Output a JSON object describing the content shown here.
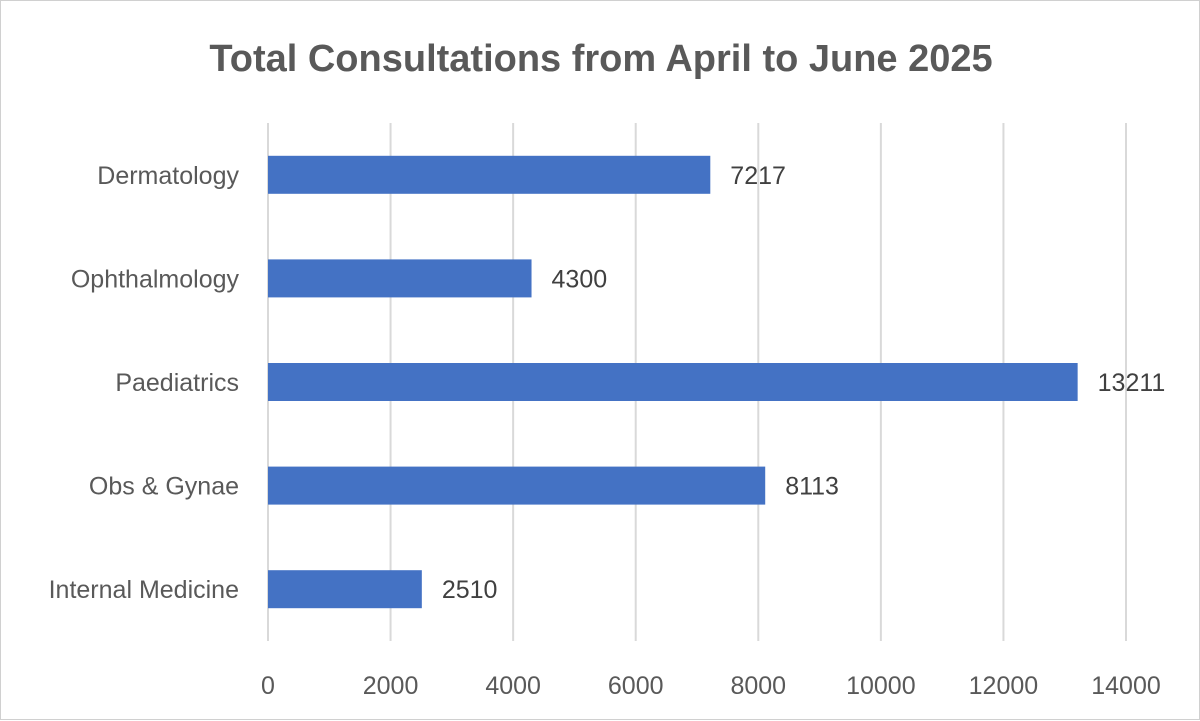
{
  "chart_data": {
    "type": "bar",
    "orientation": "horizontal",
    "title": "Total Consultations from April to June 2025",
    "categories": [
      "Dermatology",
      "Ophthalmology",
      "Paediatrics",
      "Obs & Gynae",
      "Internal Medicine"
    ],
    "values": [
      7217,
      4300,
      13211,
      8113,
      2510
    ],
    "data_labels": [
      "7217",
      "4300",
      "13211",
      "8113",
      "2510"
    ],
    "xlim": [
      0,
      14000
    ],
    "x_ticks": [
      0,
      2000,
      4000,
      6000,
      8000,
      10000,
      12000,
      14000
    ],
    "x_tick_labels": [
      "0",
      "2000",
      "4000",
      "6000",
      "8000",
      "10000",
      "12000",
      "14000"
    ],
    "xlabel": "",
    "ylabel": "",
    "grid": true,
    "legend": "none",
    "bar_color": "#4472c4"
  }
}
